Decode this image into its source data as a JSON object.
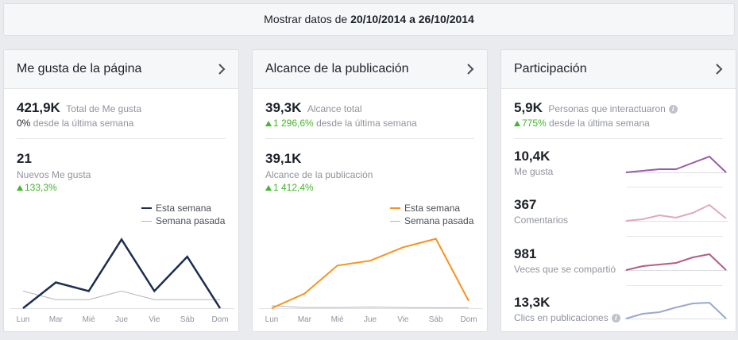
{
  "date_bar": {
    "prefix": "Mostrar datos de",
    "start": "20/10/2014",
    "joiner": "a",
    "end": "26/10/2014"
  },
  "days": [
    "Lun",
    "Mar",
    "Mié",
    "Jue",
    "Vie",
    "Sáb",
    "Dom"
  ],
  "legend": {
    "this_week": "Esta semana",
    "last_week": "Semana pasada"
  },
  "cards": {
    "likes": {
      "title": "Me gusta de la página",
      "total_value": "421,9K",
      "total_label": "Total de Me gusta",
      "total_change": "0%",
      "total_change_label": "desde la última semana",
      "new_value": "21",
      "new_label": "Nuevos Me gusta",
      "new_change": "133,3%",
      "line_color": "#1c2d4f"
    },
    "reach": {
      "title": "Alcance de la publicación",
      "total_value": "39,3K",
      "total_label": "Alcance total",
      "total_change": "1 296,6%",
      "total_change_label": "desde la última semana",
      "post_value": "39,1K",
      "post_label": "Alcance de la publicación",
      "post_change": "1 412,4%",
      "line_color": "#f7931e"
    },
    "engagement": {
      "title": "Participación",
      "total_value": "5,9K",
      "total_label": "Personas que interactuaron",
      "total_change": "775%",
      "total_change_label": "desde la última semana",
      "rows": [
        {
          "value": "10,4K",
          "label": "Me gusta",
          "color": "#9b5aa8"
        },
        {
          "value": "367",
          "label": "Comentarios",
          "color": "#e0a8c0"
        },
        {
          "value": "981",
          "label": "Veces que se compartió",
          "color": "#b25d86"
        },
        {
          "value": "13,3K",
          "label": "Clics en publicaciones",
          "color": "#9aa8cc"
        }
      ]
    }
  },
  "chart_data": [
    {
      "type": "line",
      "x": [
        "Lun",
        "Mar",
        "Mié",
        "Jue",
        "Vie",
        "Sáb",
        "Dom"
      ],
      "series": [
        {
          "name": "Esta semana",
          "values": [
            0,
            3,
            2,
            8,
            2,
            6,
            0
          ],
          "color": "#1c2d4f"
        },
        {
          "name": "Semana pasada",
          "values": [
            2,
            1,
            1,
            2,
            1,
            1,
            1
          ],
          "color": "#b4b6ba"
        }
      ],
      "ylim": [
        0,
        8.5
      ]
    },
    {
      "type": "line",
      "x": [
        "Lun",
        "Mar",
        "Mié",
        "Jue",
        "Vie",
        "Sáb",
        "Dom"
      ],
      "series": [
        {
          "name": "Esta semana",
          "values": [
            0,
            6,
            17.5,
            19.5,
            25,
            28.5,
            3
          ],
          "color": "#f7931e"
        },
        {
          "name": "Semana pasada",
          "values": [
            1,
            0.3,
            0.3,
            0.5,
            0.3,
            0.2,
            0.2
          ],
          "color": "#b4b6ba"
        }
      ],
      "ylim": [
        0,
        30
      ]
    },
    {
      "type": "line",
      "series": [
        {
          "name": "Me gusta",
          "values": [
            0,
            0.1,
            0.2,
            0.2,
            0.6,
            1.0,
            0
          ],
          "color": "#9b5aa8"
        },
        {
          "name": "Comentarios",
          "values": [
            0,
            0.1,
            0.35,
            0.2,
            0.5,
            1.0,
            0.15
          ],
          "color": "#e0a8c0"
        },
        {
          "name": "Veces que se compartió",
          "values": [
            0,
            0.25,
            0.35,
            0.45,
            0.8,
            1.0,
            0
          ],
          "color": "#b25d86"
        },
        {
          "name": "Clics en publicaciones",
          "values": [
            0,
            0.3,
            0.4,
            0.7,
            0.95,
            1.0,
            0
          ],
          "color": "#9aa8cc"
        }
      ]
    }
  ]
}
